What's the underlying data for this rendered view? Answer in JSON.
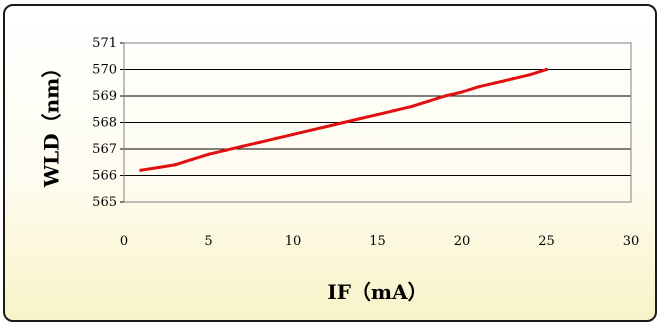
{
  "chart_data": {
    "type": "line",
    "xlabel": "IF（mA）",
    "ylabel": "WLD（nm）",
    "xlim": [
      0,
      30
    ],
    "ylim": [
      565,
      571
    ],
    "x_ticks": [
      "0",
      "5",
      "10",
      "15",
      "20",
      "25",
      "30"
    ],
    "y_ticks": [
      "565",
      "566",
      "567",
      "568",
      "569",
      "570",
      "571"
    ],
    "grid": "horizontal",
    "series": [
      {
        "color": "#e01010",
        "x": [
          1,
          2,
          3,
          4,
          5,
          6,
          7,
          8,
          9,
          10,
          11,
          12,
          13,
          14,
          15,
          16,
          17,
          18,
          19,
          20,
          21,
          22,
          23,
          24,
          25
        ],
        "y": [
          566.2,
          566.3,
          566.4,
          566.6,
          566.8,
          566.95,
          567.1,
          567.25,
          567.4,
          567.55,
          567.7,
          567.85,
          568.0,
          568.15,
          568.3,
          568.45,
          568.6,
          568.8,
          569.0,
          569.15,
          569.35,
          569.5,
          569.65,
          569.8,
          570.0
        ]
      }
    ]
  }
}
